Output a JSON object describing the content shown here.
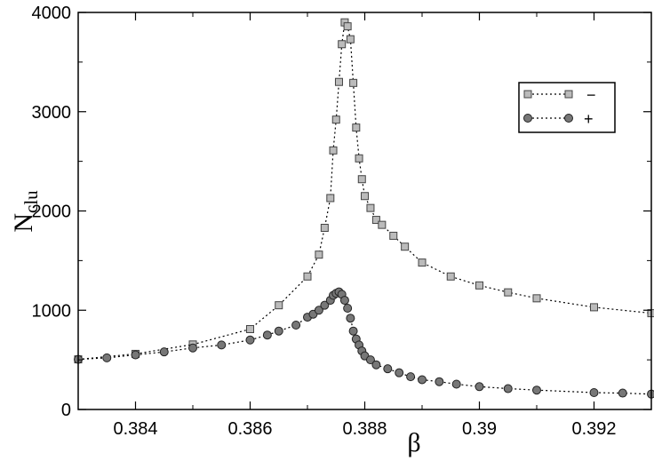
{
  "chart_data": {
    "type": "scatter",
    "title": "",
    "xlabel": "β",
    "ylabel_main": "N",
    "ylabel_sub": "clu",
    "xlim": [
      0.383,
      0.393
    ],
    "ylim": [
      0,
      4000
    ],
    "xticks": [
      0.384,
      0.386,
      0.388,
      0.39,
      0.392
    ],
    "xtick_labels": [
      "0.384",
      "0.386",
      "0.388",
      "0.39",
      "0.392"
    ],
    "yticks": [
      0,
      1000,
      2000,
      3000,
      4000
    ],
    "ytick_labels": [
      "0",
      "1000",
      "2000",
      "3000",
      "4000"
    ],
    "grid": false,
    "legend_position": "top-right",
    "series": [
      {
        "name": "−",
        "marker": "square",
        "color": "#888888",
        "x": [
          0.383,
          0.384,
          0.385,
          0.386,
          0.3865,
          0.387,
          0.3872,
          0.3873,
          0.3874,
          0.38745,
          0.3875,
          0.38755,
          0.3876,
          0.38765,
          0.3877,
          0.38775,
          0.3878,
          0.38785,
          0.3879,
          0.38795,
          0.388,
          0.3881,
          0.3882,
          0.3883,
          0.3885,
          0.3887,
          0.389,
          0.3895,
          0.39,
          0.3905,
          0.391,
          0.392,
          0.393
        ],
        "y": [
          505,
          560,
          655,
          810,
          1050,
          1340,
          1560,
          1830,
          2130,
          2610,
          2920,
          3300,
          3680,
          3900,
          3860,
          3730,
          3290,
          2840,
          2530,
          2320,
          2150,
          2030,
          1910,
          1860,
          1750,
          1640,
          1480,
          1340,
          1250,
          1180,
          1120,
          1030,
          970
        ]
      },
      {
        "name": "+",
        "marker": "circle",
        "color": "#444444",
        "x": [
          0.383,
          0.3835,
          0.384,
          0.3845,
          0.385,
          0.3855,
          0.386,
          0.3863,
          0.3865,
          0.3868,
          0.387,
          0.3871,
          0.3872,
          0.3873,
          0.3874,
          0.38745,
          0.3875,
          0.38755,
          0.3876,
          0.38765,
          0.3877,
          0.38775,
          0.3878,
          0.38785,
          0.3879,
          0.38795,
          0.388,
          0.3881,
          0.3882,
          0.3884,
          0.3886,
          0.3888,
          0.389,
          0.3893,
          0.3896,
          0.39,
          0.3905,
          0.391,
          0.392,
          0.3925,
          0.393
        ],
        "y": [
          505,
          520,
          550,
          580,
          620,
          650,
          700,
          750,
          790,
          850,
          930,
          960,
          1000,
          1050,
          1100,
          1150,
          1170,
          1185,
          1160,
          1100,
          1020,
          920,
          790,
          710,
          650,
          590,
          540,
          500,
          450,
          410,
          370,
          330,
          300,
          280,
          255,
          230,
          210,
          195,
          170,
          165,
          155
        ]
      }
    ]
  }
}
